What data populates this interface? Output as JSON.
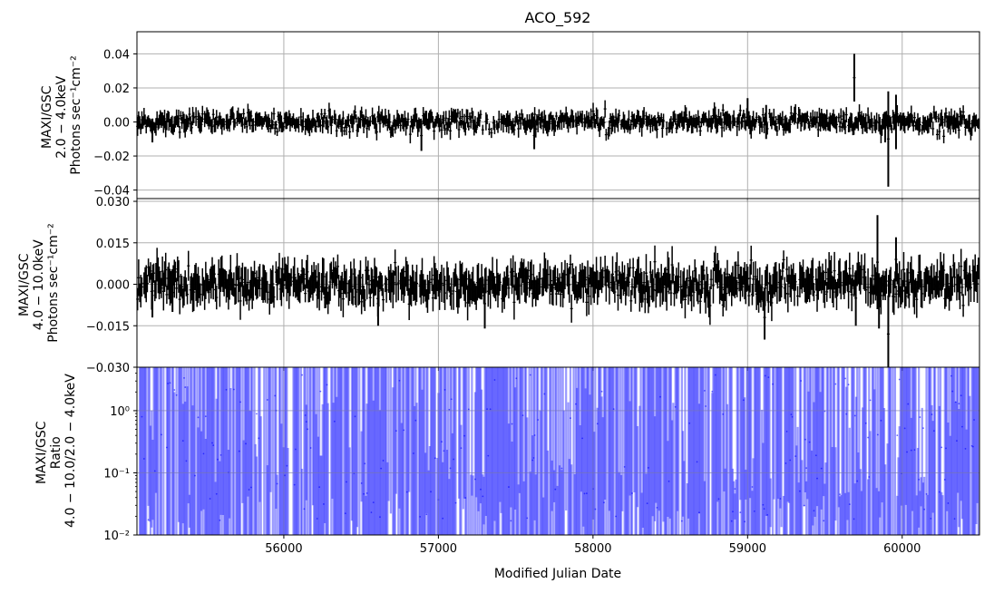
{
  "chart_data": {
    "type": "errorbar",
    "title": "ACO_592",
    "xlabel": "Modified Julian Date",
    "xlim": [
      55050,
      60500
    ],
    "xticks": [
      56000,
      57000,
      58000,
      59000,
      60000
    ],
    "xtick_labels": [
      "56000",
      "57000",
      "58000",
      "59000",
      "60000"
    ],
    "grid": true,
    "panels": [
      {
        "name": "band-2-4keV",
        "ylabel_lines": [
          "MAXI/GSC",
          "2.0 − 4.0keV",
          "Photons sec⁻¹cm⁻²"
        ],
        "ylim": [
          -0.045,
          0.053
        ],
        "yscale": "linear",
        "yticks": [
          -0.04,
          -0.02,
          0.0,
          0.02,
          0.04
        ],
        "ytick_labels": [
          "−0.04",
          "−0.02",
          "0.00",
          "0.02",
          "0.04"
        ],
        "color": "#000000",
        "bin_days": 7,
        "typical_error": 0.004,
        "typical_scatter": 0.0025,
        "notable_points": [
          {
            "x": 55060,
            "y": 0.0,
            "err": 0.004
          },
          {
            "x": 55150,
            "y": -0.005,
            "err": 0.007
          },
          {
            "x": 56890,
            "y": -0.008,
            "err": 0.009
          },
          {
            "x": 57620,
            "y": -0.008,
            "err": 0.008
          },
          {
            "x": 58790,
            "y": 0.003,
            "err": 0.006
          },
          {
            "x": 59000,
            "y": 0.006,
            "err": 0.008
          },
          {
            "x": 59120,
            "y": 0.0,
            "err": 0.01
          },
          {
            "x": 59690,
            "y": 0.026,
            "err": 0.014
          },
          {
            "x": 59890,
            "y": -0.003,
            "err": 0.009
          },
          {
            "x": 59910,
            "y": -0.01,
            "err": 0.028
          },
          {
            "x": 59960,
            "y": 0.0,
            "err": 0.016
          }
        ]
      },
      {
        "name": "band-4-10keV",
        "ylabel_lines": [
          "MAXI/GSC",
          "4.0 − 10.0keV",
          "Photons sec⁻¹cm⁻²"
        ],
        "ylim": [
          -0.03,
          0.031
        ],
        "yscale": "linear",
        "yticks": [
          -0.03,
          -0.015,
          0.0,
          0.015,
          0.03
        ],
        "ytick_labels": [
          "−0.030",
          "−0.015",
          "0.000",
          "0.015",
          "0.030"
        ],
        "color": "#000000",
        "bin_days": 7,
        "typical_error": 0.005,
        "typical_scatter": 0.003,
        "notable_points": [
          {
            "x": 55150,
            "y": -0.004,
            "err": 0.008
          },
          {
            "x": 55280,
            "y": -0.003,
            "err": 0.007
          },
          {
            "x": 56610,
            "y": -0.007,
            "err": 0.008
          },
          {
            "x": 57300,
            "y": -0.007,
            "err": 0.009
          },
          {
            "x": 59110,
            "y": -0.012,
            "err": 0.008
          },
          {
            "x": 59700,
            "y": -0.005,
            "err": 0.01
          },
          {
            "x": 59840,
            "y": 0.008,
            "err": 0.017
          },
          {
            "x": 59850,
            "y": -0.006,
            "err": 0.01
          },
          {
            "x": 59910,
            "y": -0.018,
            "err": 0.014
          },
          {
            "x": 59960,
            "y": 0.009,
            "err": 0.008
          }
        ]
      },
      {
        "name": "hardness-ratio",
        "ylabel_lines": [
          "MAXI/GSC",
          "Ratio",
          "4.0 − 10.0/2.0 − 4.0keV"
        ],
        "ylim": [
          0.01,
          5
        ],
        "yscale": "log",
        "yticks": [
          0.01,
          0.1,
          1
        ],
        "ytick_labels": [
          "10⁻²",
          "10⁻¹",
          "10⁰"
        ],
        "color": "#0000ff",
        "alpha": 0.4,
        "description": "ratio error bars span most of the axis in nearly every bin"
      }
    ]
  }
}
